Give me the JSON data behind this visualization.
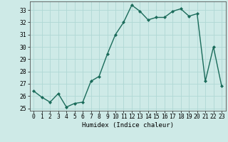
{
  "x": [
    0,
    1,
    2,
    3,
    4,
    5,
    6,
    7,
    8,
    9,
    10,
    11,
    12,
    13,
    14,
    15,
    16,
    17,
    18,
    19,
    20,
    21,
    22,
    23
  ],
  "y": [
    26.4,
    25.9,
    25.5,
    26.2,
    25.1,
    25.4,
    25.5,
    27.2,
    27.6,
    29.4,
    31.0,
    32.0,
    33.4,
    32.9,
    32.2,
    32.4,
    32.4,
    32.9,
    33.1,
    32.5,
    32.7,
    27.2,
    30.0,
    26.8
  ],
  "line_color": "#1a6b5a",
  "marker": "D",
  "marker_size": 2.0,
  "bg_color": "#ceeae7",
  "grid_color": "#b0d8d4",
  "xlabel": "Humidex (Indice chaleur)",
  "xlim": [
    -0.5,
    23.5
  ],
  "ylim": [
    24.8,
    33.7
  ],
  "yticks": [
    25,
    26,
    27,
    28,
    29,
    30,
    31,
    32,
    33
  ],
  "xticks": [
    0,
    1,
    2,
    3,
    4,
    5,
    6,
    7,
    8,
    9,
    10,
    11,
    12,
    13,
    14,
    15,
    16,
    17,
    18,
    19,
    20,
    21,
    22,
    23
  ],
  "xlabel_fontsize": 6.5,
  "tick_fontsize": 5.8,
  "line_width": 1.0
}
